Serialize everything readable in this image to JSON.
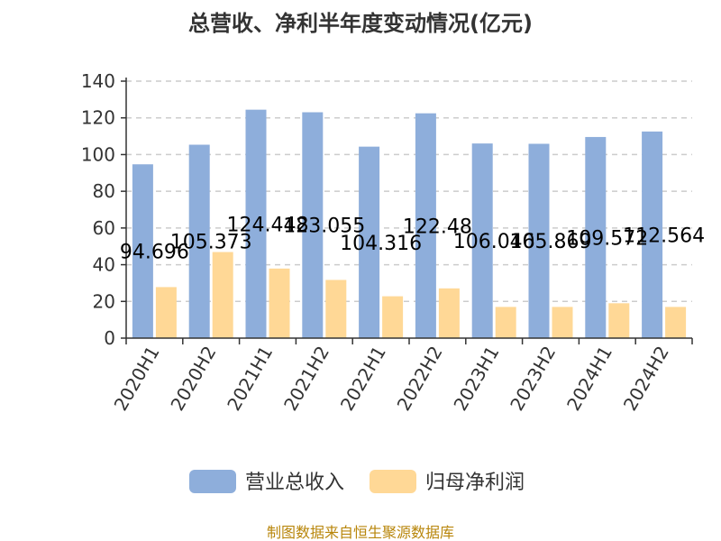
{
  "chart_data": {
    "type": "bar",
    "title": "总营收、净利半年度变动情况(亿元)",
    "categories": [
      "2020H1",
      "2020H2",
      "2021H1",
      "2021H2",
      "2022H1",
      "2022H2",
      "2023H1",
      "2023H2",
      "2024H1",
      "2024H2"
    ],
    "series": [
      {
        "name": "营业总收入",
        "color": "#8eaedb",
        "values": [
          94.696,
          105.373,
          124.448,
          123.055,
          104.316,
          122.48,
          106.046,
          105.869,
          109.572,
          112.564
        ],
        "labels": [
          "94.696",
          "105.373",
          "124.448",
          "123.055",
          "104.316",
          "122.48",
          "106.046",
          "105.869",
          "109.572",
          "112.564"
        ]
      },
      {
        "name": "归母净利润",
        "color": "#ffd896",
        "values": [
          27.8,
          46.9,
          37.9,
          31.7,
          22.8,
          27.1,
          17.0,
          17.0,
          19.0,
          17.0
        ]
      }
    ],
    "ylim": [
      0,
      140
    ],
    "yticks": [
      0,
      20,
      40,
      60,
      80,
      100,
      120,
      140
    ],
    "grid": true,
    "legend": "bottom"
  },
  "source": "制图数据来自恒生聚源数据库"
}
